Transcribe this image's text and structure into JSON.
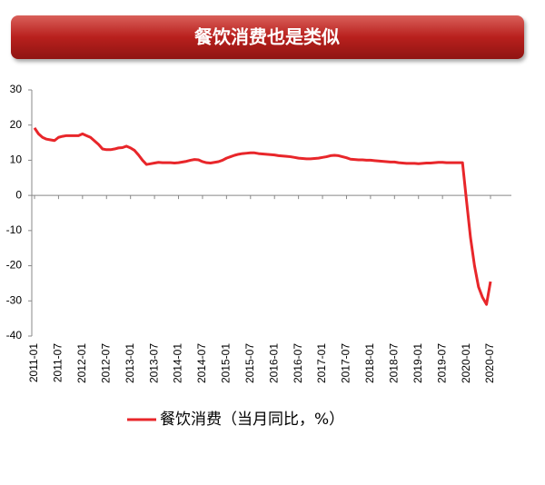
{
  "chart_data": {
    "type": "line",
    "title": "餐饮消费也是类似",
    "categories": [
      "2011-01",
      null,
      null,
      null,
      null,
      null,
      "2011-07",
      null,
      null,
      null,
      null,
      null,
      "2012-01",
      null,
      null,
      null,
      null,
      null,
      "2012-07",
      null,
      null,
      null,
      null,
      null,
      "2013-01",
      null,
      null,
      null,
      null,
      null,
      "2013-07",
      null,
      null,
      null,
      null,
      null,
      "2014-01",
      null,
      null,
      null,
      null,
      null,
      "2014-07",
      null,
      null,
      null,
      null,
      null,
      "2015-01",
      null,
      null,
      null,
      null,
      null,
      "2015-07",
      null,
      null,
      null,
      null,
      null,
      "2016-01",
      null,
      null,
      null,
      null,
      null,
      "2016-07",
      null,
      null,
      null,
      null,
      null,
      "2017-01",
      null,
      null,
      null,
      null,
      null,
      "2017-07",
      null,
      null,
      null,
      null,
      null,
      "2018-01",
      null,
      null,
      null,
      null,
      null,
      "2018-07",
      null,
      null,
      null,
      null,
      null,
      "2019-01",
      null,
      null,
      null,
      null,
      null,
      "2019-07",
      null,
      null,
      null,
      null,
      null,
      "2020-01",
      null,
      null,
      null,
      null,
      null,
      "2020-07"
    ],
    "series": [
      {
        "name": "餐饮消费（当月同比，%）",
        "color": "#e8262a",
        "values": [
          19.2,
          17.5,
          16.5,
          16.0,
          15.8,
          15.6,
          16.5,
          16.8,
          17.0,
          17.0,
          17.0,
          17.0,
          17.5,
          17.0,
          16.5,
          15.5,
          14.5,
          13.2,
          13.0,
          13.0,
          13.2,
          13.5,
          13.6,
          14.0,
          13.5,
          12.8,
          11.5,
          10.0,
          8.8,
          9.0,
          9.2,
          9.4,
          9.3,
          9.3,
          9.3,
          9.2,
          9.3,
          9.5,
          9.7,
          10.0,
          10.2,
          10.1,
          9.6,
          9.3,
          9.2,
          9.4,
          9.6,
          10.0,
          10.6,
          11.0,
          11.4,
          11.7,
          11.9,
          12.0,
          12.1,
          12.1,
          11.9,
          11.8,
          11.7,
          11.6,
          11.5,
          11.3,
          11.2,
          11.1,
          11.0,
          10.8,
          10.6,
          10.5,
          10.4,
          10.4,
          10.5,
          10.6,
          10.8,
          11.0,
          11.3,
          11.4,
          11.3,
          11.0,
          10.7,
          10.3,
          10.2,
          10.1,
          10.1,
          10.0,
          10.0,
          9.9,
          9.8,
          9.7,
          9.6,
          9.5,
          9.5,
          9.3,
          9.2,
          9.1,
          9.1,
          9.1,
          9.0,
          9.1,
          9.2,
          9.2,
          9.3,
          9.4,
          9.4,
          9.3,
          9.3,
          9.3,
          9.3,
          9.3,
          -1.5,
          -12,
          -20,
          -26,
          -29,
          -31,
          -24.5
        ]
      }
    ],
    "ylim": [
      -40,
      30
    ],
    "yticks": [
      -40,
      -30,
      -20,
      -10,
      0,
      10,
      20,
      30
    ],
    "grid": false
  }
}
